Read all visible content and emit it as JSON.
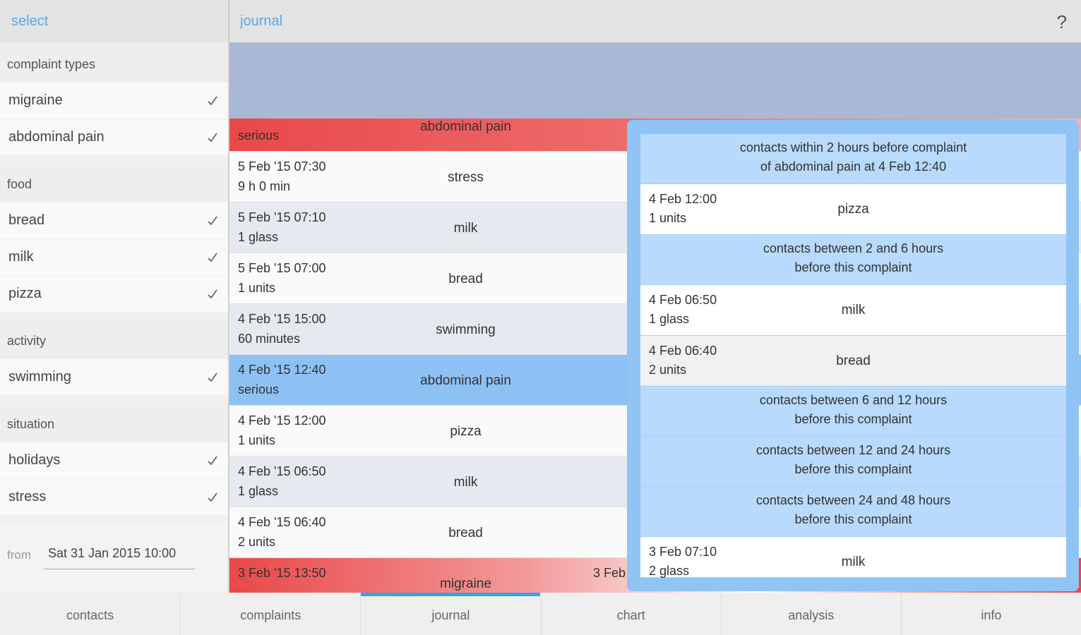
{
  "select": {
    "title": "select",
    "groups": [
      {
        "title": "complaint types",
        "items": [
          "migraine",
          "abdominal pain"
        ]
      },
      {
        "title": "food",
        "items": [
          "bread",
          "milk",
          "pizza"
        ]
      },
      {
        "title": "activity",
        "items": [
          "swimming"
        ]
      },
      {
        "title": "situation",
        "items": [
          "holidays",
          "stress"
        ]
      }
    ],
    "from_label": "from",
    "from_value": "Sat 31 Jan 2015 10:00"
  },
  "journal": {
    "title": "journal",
    "help": "?",
    "rows": [
      {
        "detail": "serious",
        "name": "abdominal pain",
        "color": "#e94848"
      },
      {
        "date": "5 Feb '15 07:30",
        "detail": "9 h 0 min",
        "name": "stress",
        "color": "#fafafa"
      },
      {
        "date": "5 Feb '15 07:10",
        "detail": "1 glass",
        "name": "milk",
        "color": "#e6eaf0"
      },
      {
        "date": "5 Feb '15 07:00",
        "detail": "1 units",
        "name": "bread",
        "color": "#fafafa"
      },
      {
        "date": "4 Feb '15 15:00",
        "detail": "60 minutes",
        "name": "swimming",
        "color": "#e6eaf0"
      },
      {
        "date": "4 Feb '15 12:40",
        "detail": "serious",
        "name": "abdominal pain",
        "color": "#8ec1f3"
      },
      {
        "date": "4 Feb '15 12:00",
        "detail": "1 units",
        "name": "pizza",
        "color": "#fafafa"
      },
      {
        "date": "4 Feb '15 06:50",
        "detail": "1 glass",
        "name": "milk",
        "color": "#e6eaf0"
      },
      {
        "date": "4 Feb '15 06:40",
        "detail": "2 units",
        "name": "bread",
        "color": "#fafafa"
      },
      {
        "date": "3 Feb '15 13:50",
        "name": "migraine",
        "extra": "3 Feb",
        "color": "#e94848"
      }
    ]
  },
  "popup": {
    "rows": [
      {
        "lines": [
          "contacts within 2 hours before complaint",
          "of abdominal pain at 4 Feb 12:40"
        ]
      },
      {
        "date": "4 Feb 12:00",
        "detail": "1 units",
        "name": "pizza",
        "color": "#ffffff"
      },
      {
        "lines": [
          "contacts between 2 and 6 hours",
          "before this complaint"
        ]
      },
      {
        "date": "4 Feb 06:50",
        "detail": "1 glass",
        "name": "milk",
        "color": "#ffffff"
      },
      {
        "date": "4 Feb 06:40",
        "detail": "2 units",
        "name": "bread",
        "color": "#f1f1f1"
      },
      {
        "lines": [
          "contacts between 6 and 12 hours",
          "before this complaint"
        ]
      },
      {
        "lines": [
          "contacts between 12 and 24 hours",
          "before this complaint"
        ]
      },
      {
        "lines": [
          "contacts between 24 and 48 hours",
          "before this complaint"
        ]
      },
      {
        "date": "3 Feb 07:10",
        "detail": "2 glass",
        "name": "milk",
        "color": "#ffffff"
      }
    ]
  },
  "tabs": {
    "items": [
      "contacts",
      "complaints",
      "journal",
      "chart",
      "analysis",
      "info"
    ],
    "selected": 2
  }
}
